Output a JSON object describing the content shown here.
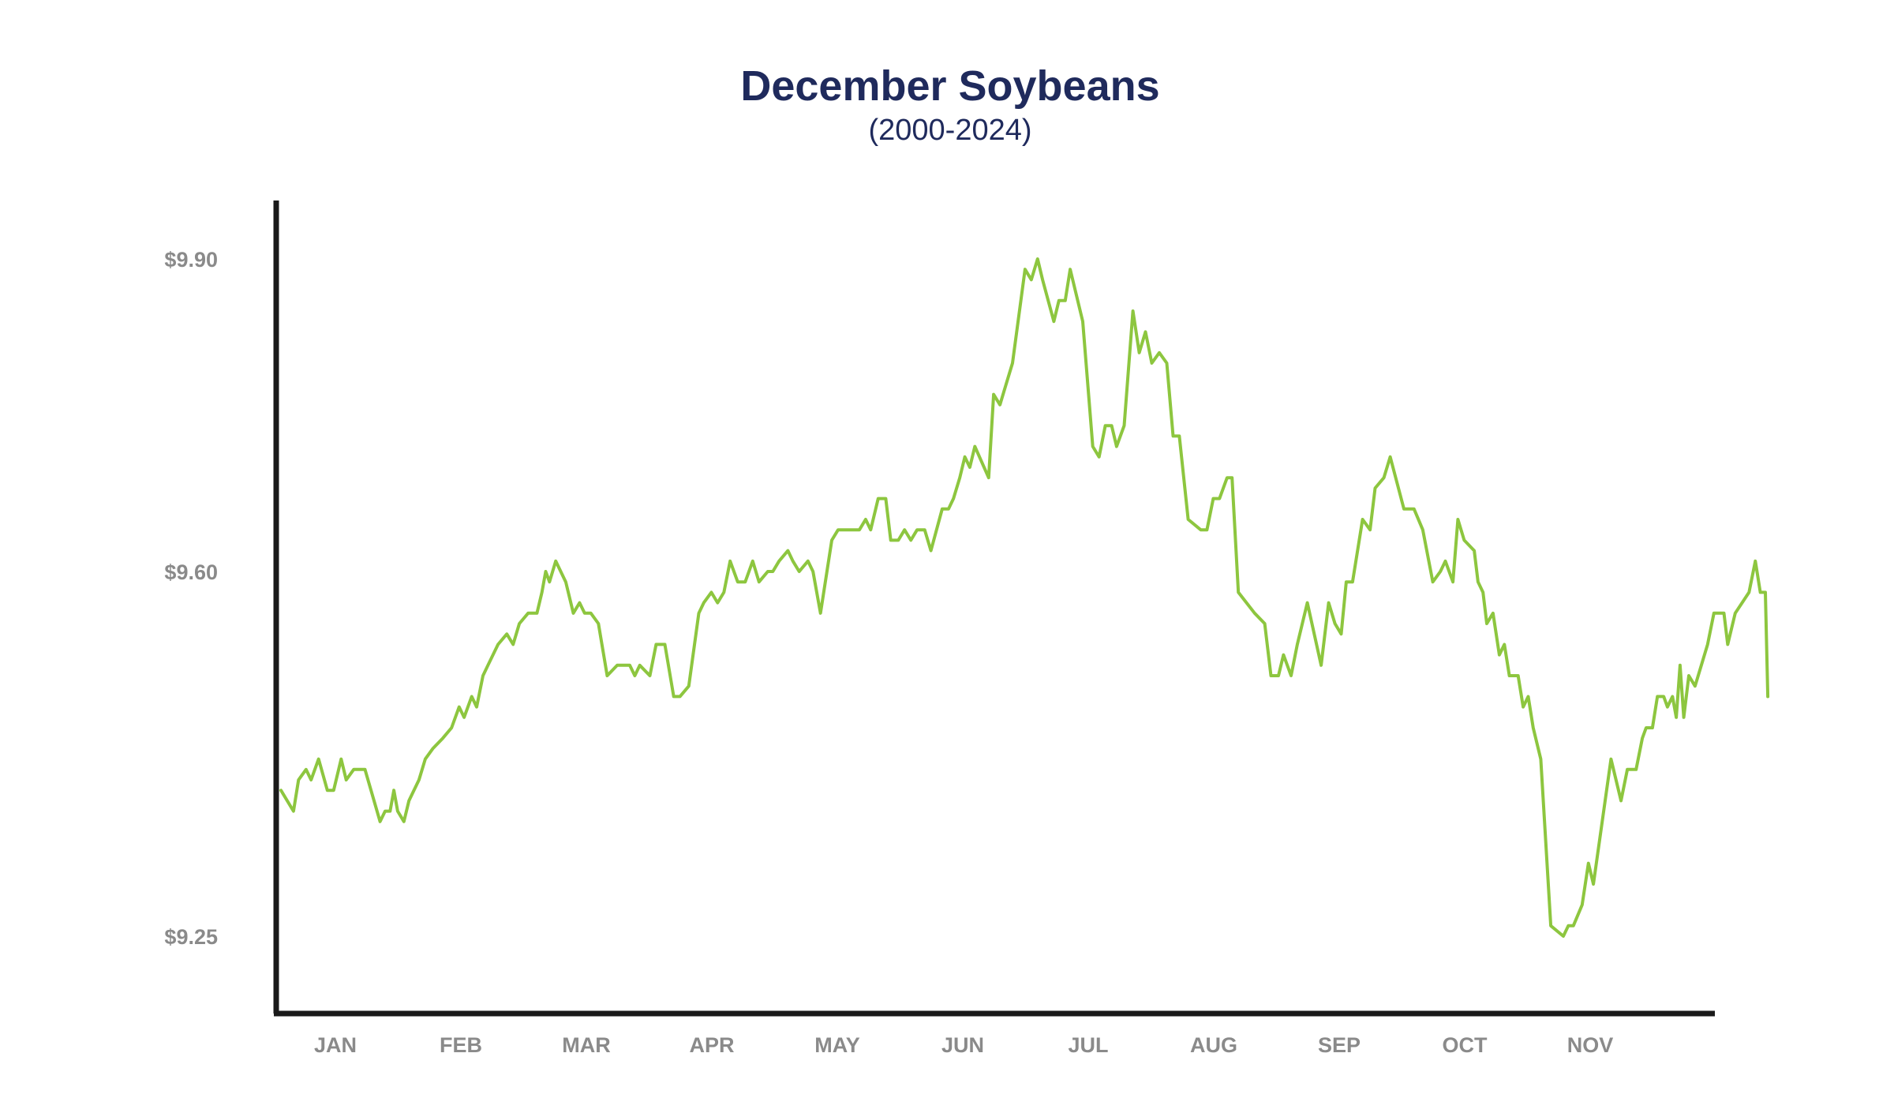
{
  "chart_data": {
    "type": "line",
    "title": "December Soybeans",
    "subtitle": "(2000-2024)",
    "xlabel": "",
    "ylabel": "",
    "x_tick_labels": [
      "JAN",
      "FEB",
      "MAR",
      "APR",
      "MAY",
      "JUN",
      "JUL",
      "AUG",
      "SEP",
      "OCT",
      "NOV"
    ],
    "y_tick_labels": [
      "$9.90",
      "$9.60",
      "$9.25"
    ],
    "y_ticks": [
      9.9,
      9.6,
      9.25
    ],
    "ylim": [
      9.18,
      9.96
    ],
    "xlim": [
      0,
      11.5
    ],
    "grid": false,
    "legend": "none",
    "line_color": "#8dc63f",
    "axis_color": "#1a1a1a",
    "series": [
      {
        "values": [
          [
            0.0,
            9.39
          ],
          [
            0.1,
            9.37
          ],
          [
            0.14,
            9.4
          ],
          [
            0.2,
            9.41
          ],
          [
            0.24,
            9.4
          ],
          [
            0.3,
            9.42
          ],
          [
            0.37,
            9.39
          ],
          [
            0.42,
            9.39
          ],
          [
            0.48,
            9.42
          ],
          [
            0.52,
            9.4
          ],
          [
            0.58,
            9.41
          ],
          [
            0.67,
            9.41
          ],
          [
            0.79,
            9.36
          ],
          [
            0.83,
            9.37
          ],
          [
            0.87,
            9.37
          ],
          [
            0.9,
            9.39
          ],
          [
            0.93,
            9.37
          ],
          [
            0.98,
            9.36
          ],
          [
            1.02,
            9.38
          ],
          [
            1.1,
            9.4
          ],
          [
            1.15,
            9.42
          ],
          [
            1.21,
            9.43
          ],
          [
            1.29,
            9.44
          ],
          [
            1.36,
            9.45
          ],
          [
            1.42,
            9.47
          ],
          [
            1.46,
            9.46
          ],
          [
            1.52,
            9.48
          ],
          [
            1.56,
            9.47
          ],
          [
            1.61,
            9.5
          ],
          [
            1.65,
            9.51
          ],
          [
            1.73,
            9.53
          ],
          [
            1.8,
            9.54
          ],
          [
            1.85,
            9.53
          ],
          [
            1.9,
            9.55
          ],
          [
            1.97,
            9.56
          ],
          [
            2.04,
            9.56
          ],
          [
            2.08,
            9.58
          ],
          [
            2.11,
            9.6
          ],
          [
            2.14,
            9.59
          ],
          [
            2.19,
            9.61
          ],
          [
            2.27,
            9.59
          ],
          [
            2.33,
            9.56
          ],
          [
            2.38,
            9.57
          ],
          [
            2.42,
            9.56
          ],
          [
            2.47,
            9.56
          ],
          [
            2.53,
            9.55
          ],
          [
            2.6,
            9.5
          ],
          [
            2.68,
            9.51
          ],
          [
            2.78,
            9.51
          ],
          [
            2.82,
            9.5
          ],
          [
            2.86,
            9.51
          ],
          [
            2.94,
            9.5
          ],
          [
            2.99,
            9.53
          ],
          [
            3.06,
            9.53
          ],
          [
            3.13,
            9.48
          ],
          [
            3.18,
            9.48
          ],
          [
            3.25,
            9.49
          ],
          [
            3.33,
            9.56
          ],
          [
            3.37,
            9.57
          ],
          [
            3.43,
            9.58
          ],
          [
            3.48,
            9.57
          ],
          [
            3.53,
            9.58
          ],
          [
            3.58,
            9.61
          ],
          [
            3.64,
            9.59
          ],
          [
            3.7,
            9.59
          ],
          [
            3.76,
            9.61
          ],
          [
            3.81,
            9.59
          ],
          [
            3.88,
            9.6
          ],
          [
            3.92,
            9.6
          ],
          [
            3.97,
            9.61
          ],
          [
            4.04,
            9.62
          ],
          [
            4.08,
            9.61
          ],
          [
            4.13,
            9.6
          ],
          [
            4.2,
            9.61
          ],
          [
            4.24,
            9.6
          ],
          [
            4.3,
            9.56
          ],
          [
            4.39,
            9.63
          ],
          [
            4.44,
            9.64
          ],
          [
            4.48,
            9.64
          ],
          [
            4.55,
            9.64
          ],
          [
            4.61,
            9.64
          ],
          [
            4.66,
            9.65
          ],
          [
            4.7,
            9.64
          ],
          [
            4.76,
            9.67
          ],
          [
            4.82,
            9.67
          ],
          [
            4.86,
            9.63
          ],
          [
            4.92,
            9.63
          ],
          [
            4.97,
            9.64
          ],
          [
            5.02,
            9.63
          ],
          [
            5.07,
            9.64
          ],
          [
            5.13,
            9.64
          ],
          [
            5.18,
            9.62
          ],
          [
            5.27,
            9.66
          ],
          [
            5.32,
            9.66
          ],
          [
            5.36,
            9.67
          ],
          [
            5.41,
            9.69
          ],
          [
            5.45,
            9.71
          ],
          [
            5.49,
            9.7
          ],
          [
            5.53,
            9.72
          ],
          [
            5.64,
            9.69
          ],
          [
            5.68,
            9.77
          ],
          [
            5.73,
            9.76
          ],
          [
            5.78,
            9.78
          ],
          [
            5.83,
            9.8
          ],
          [
            5.93,
            9.89
          ],
          [
            5.98,
            9.88
          ],
          [
            6.03,
            9.9
          ],
          [
            6.07,
            9.88
          ],
          [
            6.16,
            9.84
          ],
          [
            6.2,
            9.86
          ],
          [
            6.25,
            9.86
          ],
          [
            6.29,
            9.89
          ],
          [
            6.39,
            9.84
          ],
          [
            6.47,
            9.72
          ],
          [
            6.52,
            9.71
          ],
          [
            6.57,
            9.74
          ],
          [
            6.62,
            9.74
          ],
          [
            6.66,
            9.72
          ],
          [
            6.72,
            9.74
          ],
          [
            6.79,
            9.85
          ],
          [
            6.84,
            9.81
          ],
          [
            6.89,
            9.83
          ],
          [
            6.94,
            9.8
          ],
          [
            7.0,
            9.81
          ],
          [
            7.06,
            9.8
          ],
          [
            7.11,
            9.73
          ],
          [
            7.16,
            9.73
          ],
          [
            7.23,
            9.65
          ],
          [
            7.33,
            9.64
          ],
          [
            7.38,
            9.64
          ],
          [
            7.43,
            9.67
          ],
          [
            7.48,
            9.67
          ],
          [
            7.54,
            9.69
          ],
          [
            7.58,
            9.69
          ],
          [
            7.63,
            9.58
          ],
          [
            7.76,
            9.56
          ],
          [
            7.84,
            9.55
          ],
          [
            7.89,
            9.5
          ],
          [
            7.95,
            9.5
          ],
          [
            7.99,
            9.52
          ],
          [
            8.05,
            9.5
          ],
          [
            8.1,
            9.53
          ],
          [
            8.18,
            9.57
          ],
          [
            8.29,
            9.51
          ],
          [
            8.35,
            9.57
          ],
          [
            8.4,
            9.55
          ],
          [
            8.45,
            9.54
          ],
          [
            8.49,
            9.59
          ],
          [
            8.54,
            9.59
          ],
          [
            8.62,
            9.65
          ],
          [
            8.68,
            9.64
          ],
          [
            8.72,
            9.68
          ],
          [
            8.79,
            9.69
          ],
          [
            8.84,
            9.71
          ],
          [
            8.95,
            9.66
          ],
          [
            9.03,
            9.66
          ],
          [
            9.1,
            9.64
          ],
          [
            9.18,
            9.59
          ],
          [
            9.24,
            9.6
          ],
          [
            9.28,
            9.61
          ],
          [
            9.34,
            9.59
          ],
          [
            9.38,
            9.65
          ],
          [
            9.43,
            9.63
          ],
          [
            9.51,
            9.62
          ],
          [
            9.54,
            9.59
          ],
          [
            9.58,
            9.58
          ],
          [
            9.61,
            9.55
          ],
          [
            9.66,
            9.56
          ],
          [
            9.71,
            9.52
          ],
          [
            9.75,
            9.53
          ],
          [
            9.79,
            9.5
          ],
          [
            9.86,
            9.5
          ],
          [
            9.9,
            9.47
          ],
          [
            9.94,
            9.48
          ],
          [
            9.98,
            9.45
          ],
          [
            10.04,
            9.42
          ],
          [
            10.12,
            9.26
          ],
          [
            10.22,
            9.25
          ],
          [
            10.26,
            9.26
          ],
          [
            10.3,
            9.26
          ],
          [
            10.37,
            9.28
          ],
          [
            10.42,
            9.32
          ],
          [
            10.46,
            9.3
          ],
          [
            10.6,
            9.42
          ],
          [
            10.68,
            9.38
          ],
          [
            10.73,
            9.41
          ],
          [
            10.8,
            9.41
          ],
          [
            10.85,
            9.44
          ],
          [
            10.88,
            9.45
          ],
          [
            10.93,
            9.45
          ],
          [
            10.97,
            9.48
          ],
          [
            11.02,
            9.48
          ],
          [
            11.05,
            9.47
          ],
          [
            11.09,
            9.48
          ],
          [
            11.12,
            9.46
          ],
          [
            11.15,
            9.51
          ],
          [
            11.18,
            9.46
          ],
          [
            11.22,
            9.5
          ],
          [
            11.27,
            9.49
          ],
          [
            11.37,
            9.53
          ],
          [
            11.42,
            9.56
          ],
          [
            11.5,
            9.56
          ],
          [
            11.53,
            9.53
          ],
          [
            11.59,
            9.56
          ],
          [
            11.7,
            9.58
          ],
          [
            11.75,
            9.61
          ],
          [
            11.79,
            9.58
          ],
          [
            11.83,
            9.58
          ],
          [
            11.85,
            9.48
          ]
        ]
      }
    ]
  }
}
